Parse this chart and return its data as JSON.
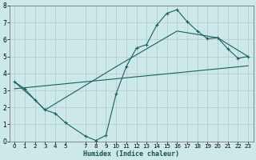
{
  "title": "",
  "xlabel": "Humidex (Indice chaleur)",
  "xlim": [
    -0.5,
    23.5
  ],
  "ylim": [
    0,
    8
  ],
  "xtick_vals": [
    0,
    1,
    2,
    3,
    4,
    5,
    7,
    8,
    9,
    10,
    11,
    12,
    13,
    14,
    15,
    16,
    17,
    18,
    19,
    20,
    21,
    22,
    23
  ],
  "ytick_vals": [
    0,
    1,
    2,
    3,
    4,
    5,
    6,
    7,
    8
  ],
  "background_color": "#cce8e8",
  "grid_color": "#b0c8c8",
  "line_color": "#1a6060",
  "line1_x": [
    0,
    1,
    2,
    3,
    4,
    5,
    7,
    8,
    9,
    10,
    11,
    12,
    13,
    14,
    15,
    16,
    17,
    18,
    19,
    20,
    21,
    22,
    23
  ],
  "line1_y": [
    3.5,
    3.1,
    2.45,
    1.85,
    1.65,
    1.1,
    0.3,
    0.05,
    0.35,
    2.8,
    4.4,
    5.5,
    5.7,
    6.85,
    7.55,
    7.75,
    7.05,
    6.5,
    6.05,
    6.1,
    5.45,
    4.9,
    5.0
  ],
  "line2_x": [
    0,
    2,
    3,
    10,
    16,
    20,
    23
  ],
  "line2_y": [
    3.5,
    2.45,
    1.85,
    4.4,
    6.5,
    6.1,
    5.0
  ],
  "line3_x": [
    0,
    23
  ],
  "line3_y": [
    3.1,
    4.45
  ]
}
